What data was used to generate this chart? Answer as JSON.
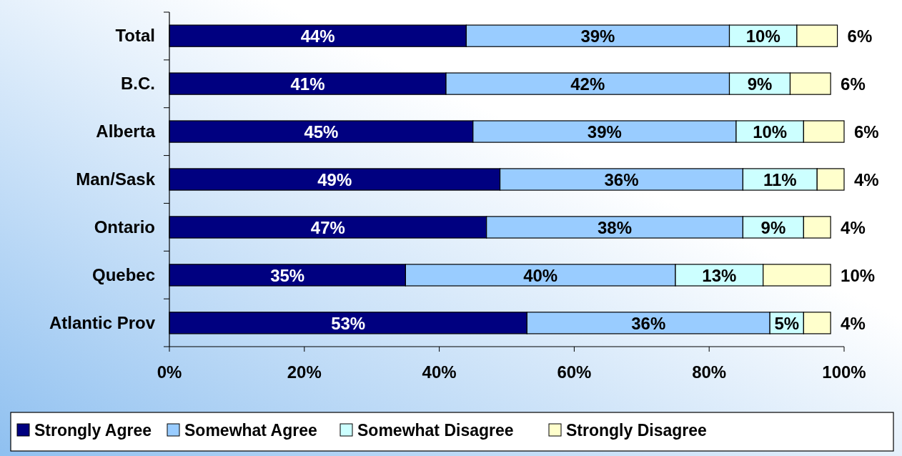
{
  "chart_data": {
    "type": "bar",
    "orientation": "horizontal",
    "stacked": true,
    "categories": [
      "Total",
      "B.C.",
      "Alberta",
      "Man/Sask",
      "Ontario",
      "Quebec",
      "Atlantic Prov"
    ],
    "series": [
      {
        "name": "Strongly Agree",
        "color": "#000080",
        "values": [
          44,
          41,
          45,
          49,
          47,
          35,
          53
        ],
        "value_labels": [
          "44%",
          "41%",
          "45%",
          "49%",
          "47%",
          "35%",
          "53%"
        ]
      },
      {
        "name": "Somewhat Agree",
        "color": "#99ccff",
        "values": [
          39,
          42,
          39,
          36,
          38,
          40,
          36
        ],
        "value_labels": [
          "39%",
          "42%",
          "39%",
          "36%",
          "38%",
          "40%",
          "36%"
        ]
      },
      {
        "name": "Somewhat Disagree",
        "color": "#ccffff",
        "values": [
          10,
          9,
          10,
          11,
          9,
          13,
          5
        ],
        "value_labels": [
          "10%",
          "9%",
          "10%",
          "11%",
          "9%",
          "13%",
          "5%"
        ]
      },
      {
        "name": "Strongly Disagree",
        "color": "#ffffcc",
        "values": [
          6,
          6,
          6,
          4,
          4,
          10,
          4
        ],
        "value_labels": [
          "6%",
          "6%",
          "6%",
          "4%",
          "4%",
          "10%",
          "4%"
        ]
      }
    ],
    "xlim": [
      0,
      100
    ],
    "xticks": [
      {
        "value": 0,
        "label": "0%"
      },
      {
        "value": 20,
        "label": "20%"
      },
      {
        "value": 40,
        "label": "40%"
      },
      {
        "value": 60,
        "label": "60%"
      },
      {
        "value": 80,
        "label": "80%"
      },
      {
        "value": 100,
        "label": "100%"
      }
    ],
    "grid": false,
    "legend": "bottom"
  }
}
